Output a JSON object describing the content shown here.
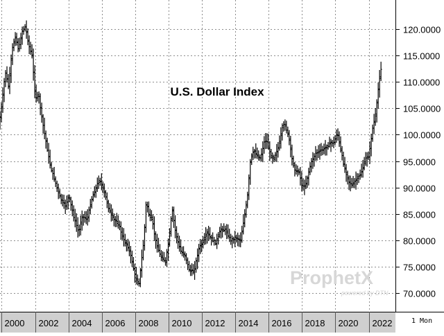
{
  "chart_data": {
    "type": "line",
    "title": "U.S. Dollar Index",
    "xlabel": "",
    "ylabel": "",
    "period": "1 Mon",
    "x_ticks": [
      "2000",
      "2002",
      "2004",
      "2006",
      "2008",
      "2010",
      "2012",
      "2014",
      "2016",
      "2018",
      "2020",
      "2022"
    ],
    "y_ticks": [
      "70.0000",
      "75.0000",
      "80.0000",
      "85.0000",
      "90.0000",
      "95.0000",
      "100.0000",
      "105.0000",
      "110.0000",
      "115.0000",
      "120.0000"
    ],
    "xlim": [
      1999.9,
      2023.6
    ],
    "ylim": [
      66.5,
      125.5
    ],
    "grid": true,
    "series": [
      {
        "color": "#000000",
        "x": [
          1999.9,
          2000.1,
          2000.3,
          2000.5,
          2000.7,
          2000.9,
          2001.1,
          2001.3,
          2001.5,
          2001.7,
          2001.9,
          2002.1,
          2002.3,
          2002.5,
          2002.8,
          2003.0,
          2003.3,
          2003.6,
          2003.9,
          2004.1,
          2004.4,
          2004.7,
          2004.9,
          2005.2,
          2005.5,
          2005.8,
          2005.95,
          2006.2,
          2006.5,
          2006.8,
          2007.1,
          2007.4,
          2007.7,
          2007.9,
          2008.1,
          2008.3,
          2008.6,
          2008.75,
          2008.9,
          2009.1,
          2009.3,
          2009.6,
          2009.9,
          2010.1,
          2010.3,
          2010.5,
          2010.8,
          2011.1,
          2011.3,
          2011.6,
          2011.9,
          2012.1,
          2012.4,
          2012.6,
          2012.9,
          2013.2,
          2013.5,
          2013.8,
          2014.1,
          2014.4,
          2014.6,
          2014.8,
          2015.0,
          2015.2,
          2015.4,
          2015.6,
          2015.8,
          2015.95,
          2016.2,
          2016.4,
          2016.7,
          2016.9,
          2017.05,
          2017.3,
          2017.5,
          2017.7,
          2017.9,
          2018.1,
          2018.3,
          2018.6,
          2018.9,
          2019.2,
          2019.5,
          2019.8,
          2020.0,
          2020.2,
          2020.35,
          2020.6,
          2020.9,
          2021.1,
          2021.3,
          2021.6,
          2021.9,
          2022.1,
          2022.3,
          2022.5,
          2022.7,
          2022.8
        ],
        "y": [
          101.5,
          106.0,
          112.0,
          109.0,
          116.0,
          118.5,
          116.0,
          119.5,
          120.5,
          117.0,
          115.0,
          107.0,
          107.5,
          103.0,
          97.5,
          94.0,
          91.0,
          88.0,
          86.5,
          88.5,
          84.5,
          81.5,
          84.5,
          84.0,
          88.0,
          90.5,
          91.5,
          89.5,
          86.0,
          84.0,
          83.0,
          80.0,
          78.5,
          76.0,
          73.0,
          71.5,
          80.0,
          87.5,
          85.0,
          84.0,
          80.0,
          77.0,
          76.0,
          80.0,
          86.0,
          81.5,
          78.0,
          77.0,
          74.5,
          74.0,
          78.5,
          79.5,
          81.5,
          80.5,
          79.5,
          82.0,
          82.0,
          80.0,
          80.5,
          80.0,
          84.0,
          88.0,
          95.5,
          97.0,
          96.0,
          95.5,
          98.5,
          99.0,
          96.0,
          95.5,
          98.0,
          101.5,
          102.0,
          99.5,
          95.0,
          93.0,
          93.0,
          90.0,
          90.5,
          94.5,
          96.5,
          97.0,
          97.5,
          98.5,
          98.5,
          100.5,
          98.0,
          94.0,
          91.0,
          90.5,
          91.5,
          92.5,
          95.5,
          96.0,
          101.0,
          104.0,
          110.0,
          112.5
        ]
      }
    ]
  },
  "watermark": {
    "brand": "ProphetX",
    "sub": "powered by DTN"
  }
}
